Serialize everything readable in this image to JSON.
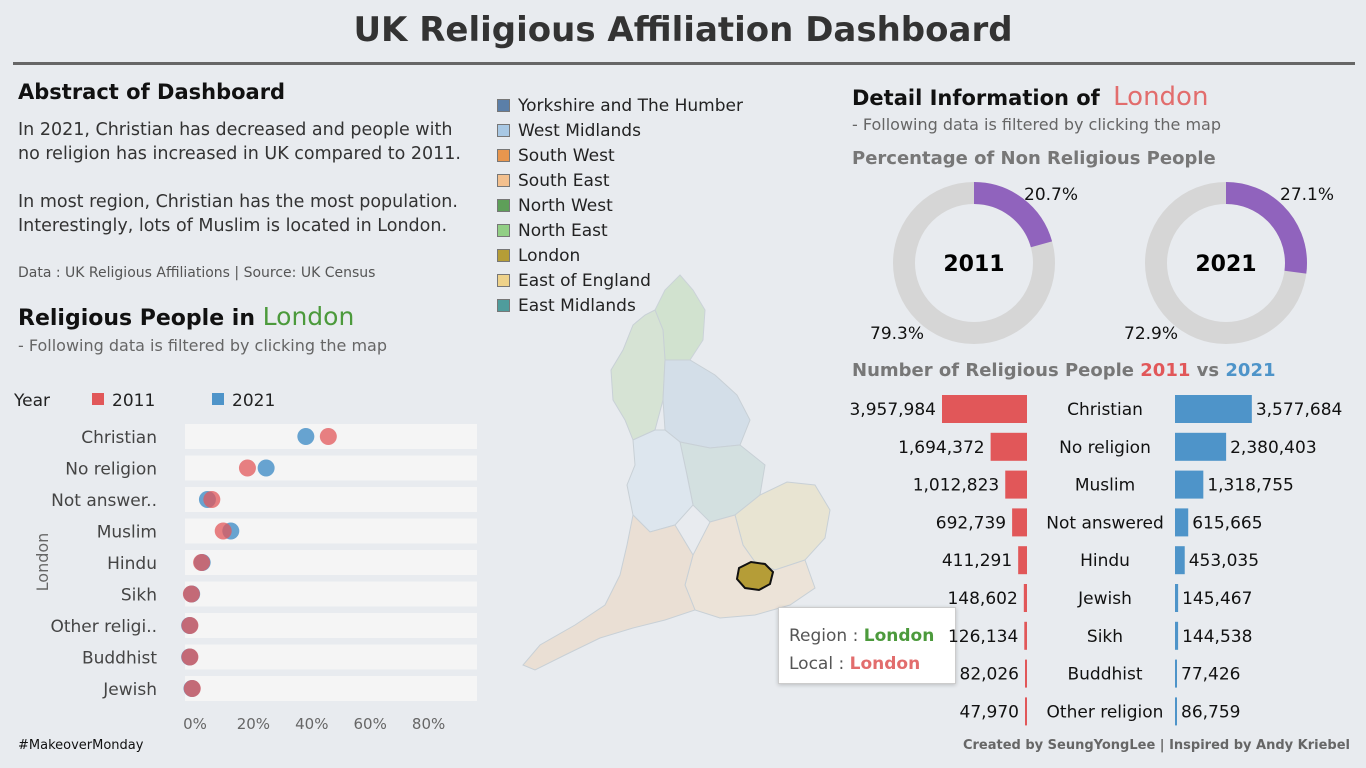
{
  "title": "UK Religious Affiliation Dashboard",
  "abstract": {
    "heading": "Abstract of Dashboard",
    "p1_line1": "In 2021, Christian has decreased  and people with",
    "p1_line2": "no religion has increased in UK compared to 2011.",
    "p2_line1": "In most region, Christian has the most population.",
    "p2_line2": "Interestingly, lots of Muslim is located in London.",
    "source": "Data : UK Religious Affiliations  | Source: UK Census"
  },
  "religious_people": {
    "heading_prefix": "Religious People in",
    "region": "London",
    "subtitle": "- Following data is filtered by clicking the map",
    "legend_title": "Year",
    "legend_2011": "2011",
    "legend_2021": "2021",
    "axis_side_label": "London"
  },
  "region_legend": [
    {
      "label": "Yorkshire and The Humber",
      "color": "#5b7fa8"
    },
    {
      "label": "West Midlands",
      "color": "#a8c8e4"
    },
    {
      "label": "South West",
      "color": "#e8964e"
    },
    {
      "label": "South East",
      "color": "#f3c08e"
    },
    {
      "label": "North West",
      "color": "#5e9f59"
    },
    {
      "label": "North East",
      "color": "#92cf85"
    },
    {
      "label": "London",
      "color": "#b59d37"
    },
    {
      "label": "East of England",
      "color": "#eed28a"
    },
    {
      "label": "East Midlands",
      "color": "#4f9c9c"
    }
  ],
  "detail": {
    "heading_prefix": "Detail Information of",
    "region": "London",
    "subtitle": "- Following data is filtered by clicking the map",
    "nonrel_heading": "Percentage of Non Religious People",
    "donuts": [
      {
        "year": "2011",
        "non_religious_pct": 20.7,
        "non_religious_label": "20.7%",
        "rest_label": "79.3%"
      },
      {
        "year": "2021",
        "non_religious_pct": 27.1,
        "non_religious_label": "27.1%",
        "rest_label": "72.9%"
      }
    ],
    "number_heading_prefix": "Number of Religious People",
    "number_heading_2011": "2011",
    "number_heading_vs": "vs",
    "number_heading_2021": "2021"
  },
  "tooltip": {
    "region_label": "Region :",
    "region_value": "London",
    "local_label": "Local :",
    "local_value": "London"
  },
  "footer": {
    "left": "#MakeoverMonday",
    "right": "Created by SeungYongLee | Inspired by Andy Kriebel"
  },
  "colors": {
    "y2011": "#e15759",
    "y2021": "#4e94c9",
    "donut_fill": "#9063bd",
    "donut_track": "#d6d6d6",
    "london_map": "#b59d37"
  },
  "chart_data": [
    {
      "type": "scatter",
      "title": "Religious People in London",
      "categories": [
        "Christian",
        "No religion",
        "Not answer..",
        "Muslim",
        "Hindu",
        "Sikh",
        "Other religi..",
        "Buddhist",
        "Jewish"
      ],
      "xlabel": "",
      "ylabel": "London",
      "x_ticks": [
        "0%",
        "20%",
        "40%",
        "60%",
        "80%"
      ],
      "xlim": [
        0,
        100
      ],
      "series": [
        {
          "name": "2011",
          "values": [
            48.4,
            20.7,
            8.5,
            12.4,
            5.0,
            1.5,
            1.0,
            1.0,
            1.8
          ]
        },
        {
          "name": "2021",
          "values": [
            40.7,
            27.1,
            7.0,
            15.0,
            5.2,
            1.6,
            0.9,
            0.9,
            1.7
          ]
        }
      ]
    },
    {
      "type": "bar",
      "title": "Number of Religious People 2011 vs 2021",
      "categories": [
        "Christian",
        "No religion",
        "Muslim",
        "Not answered",
        "Hindu",
        "Jewish",
        "Sikh",
        "Buddhist",
        "Other religion"
      ],
      "series": [
        {
          "name": "2011",
          "values": [
            3957984,
            1694372,
            1012823,
            692739,
            411291,
            148602,
            126134,
            82026,
            47970
          ],
          "labels": [
            "3,957,984",
            "1,694,372",
            "1,012,823",
            "692,739",
            "411,291",
            "148,602",
            "126,134",
            "82,026",
            "47,970"
          ]
        },
        {
          "name": "2021",
          "values": [
            3577684,
            2380403,
            1318755,
            615665,
            453035,
            145467,
            144538,
            77426,
            86759
          ],
          "labels": [
            "3,577,684",
            "2,380,403",
            "1,318,755",
            "615,665",
            "453,035",
            "145,467",
            "144,538",
            "77,426",
            "86,759"
          ]
        }
      ]
    }
  ]
}
